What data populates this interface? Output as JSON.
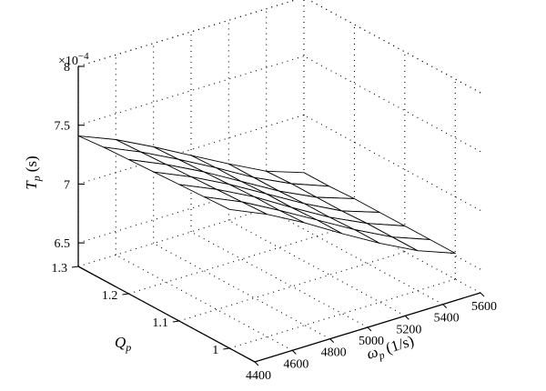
{
  "chart_data": {
    "type": "surface",
    "title": "",
    "xlabel": "ω",
    "xlabel_sub": "p",
    "xlabel_unit": "(1/s)",
    "ylabel": "Q",
    "ylabel_sub": "p",
    "zlabel": "T",
    "zlabel_sub": "p",
    "zlabel_unit": "(s)",
    "z_exponent_label": "×10",
    "z_exponent_power": "−4",
    "xlim": [
      4400,
      5600
    ],
    "ylim": [
      0.95,
      1.3
    ],
    "zlim": [
      6.3,
      8
    ],
    "x_ticks": [
      4400,
      4600,
      4800,
      5000,
      5200,
      5400,
      5600
    ],
    "y_ticks": [
      1,
      1.1,
      1.2,
      1.3
    ],
    "z_ticks": [
      6.5,
      7,
      7.5,
      8
    ],
    "x_tick_labels": [
      "4400",
      "4600",
      "4800",
      "5000",
      "5200",
      "5400",
      "5600"
    ],
    "y_tick_labels": [
      "1",
      "1.1",
      "1.2",
      "1.3"
    ],
    "z_tick_labels": [
      "6.5",
      "7",
      "7.5",
      "8"
    ],
    "grid": true,
    "surface": {
      "x": [
        4400,
        4600,
        4800,
        5000,
        5200,
        5400,
        5600
      ],
      "y": [
        1,
        1.05,
        1.1,
        1.15,
        1.2,
        1.25,
        1.3
      ],
      "z": [
        [
          7.48,
          7.34,
          7.17,
          6.98,
          6.8,
          6.64,
          6.52
        ],
        [
          7.47,
          7.33,
          7.16,
          6.98,
          6.8,
          6.64,
          6.52
        ],
        [
          7.46,
          7.32,
          7.16,
          6.97,
          6.79,
          6.64,
          6.52
        ],
        [
          7.45,
          7.31,
          7.15,
          6.97,
          6.79,
          6.63,
          6.52
        ],
        [
          7.44,
          7.3,
          7.14,
          6.96,
          6.78,
          6.63,
          6.52
        ],
        [
          7.43,
          7.29,
          7.13,
          6.96,
          6.78,
          6.63,
          6.51
        ],
        [
          7.41,
          7.28,
          7.12,
          6.95,
          6.78,
          6.62,
          6.51
        ]
      ]
    }
  }
}
